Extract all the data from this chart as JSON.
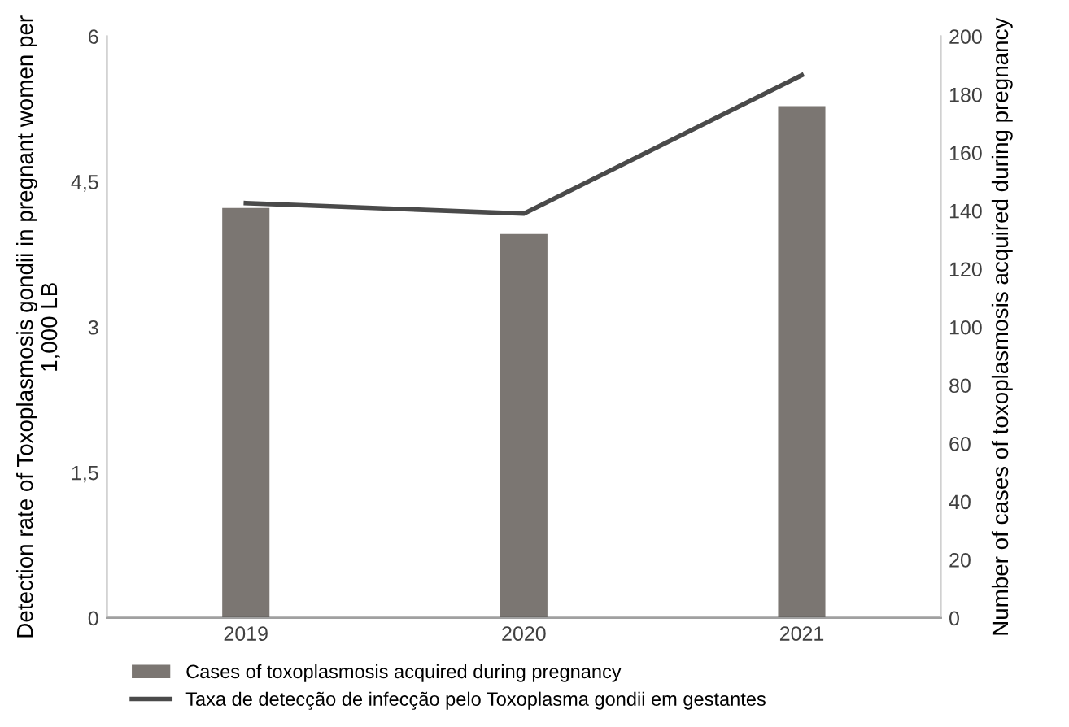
{
  "chart_data": {
    "type": "bar",
    "categories": [
      "2019",
      "2020",
      "2021"
    ],
    "ylabel": "Detection rate of Toxoplasmosis gondii in pregnant women per 1,000 LB",
    "y2label": "Number of cases of toxoplasmosis acquired during pregnancy",
    "ylim": [
      0,
      6
    ],
    "yticks": [
      0,
      {
        "value": 1.5,
        "label": "1,5"
      },
      3,
      {
        "value": 4.5,
        "label": "4,5"
      },
      6
    ],
    "y2lim": [
      0,
      200
    ],
    "y2ticks": [
      0,
      20,
      40,
      60,
      80,
      100,
      120,
      140,
      160,
      180,
      200
    ],
    "series": [
      {
        "name": "Cases of toxoplasmosis acquired during pregnancy",
        "axis": "y2",
        "color": "#7b7672",
        "values": [
          141,
          132,
          176
        ]
      },
      {
        "name": "Taxa de detecção de infecção pelo Toxoplasma gondii em gestantes",
        "type": "line",
        "color": "#4a4a4a",
        "values": [
          4.28,
          4.17,
          5.6
        ]
      }
    ],
    "legend": "bottom",
    "grid": false
  }
}
